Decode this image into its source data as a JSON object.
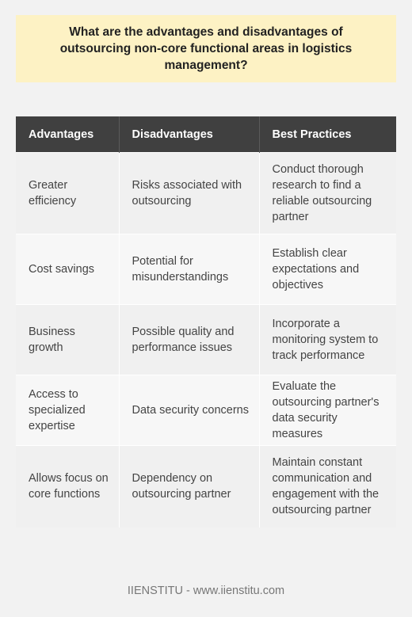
{
  "title": "What are the advantages and disadvantages of outsourcing non-core functional areas in logistics management?",
  "table": {
    "headers": [
      "Advantages",
      "Disadvantages",
      "Best Practices"
    ],
    "rows": [
      [
        "Greater efficiency",
        "Risks associated with outsourcing",
        "Conduct thorough research to find a reliable outsourcing partner"
      ],
      [
        "Cost savings",
        "Potential for misunderstandings",
        "Establish clear expectations and objectives"
      ],
      [
        "Business growth",
        "Possible quality and performance issues",
        "Incorporate a monitoring system to track performance"
      ],
      [
        "Access to specialized expertise",
        "Data security concerns",
        "Evaluate the outsourcing partner's data security measures"
      ],
      [
        "Allows focus on core functions",
        "Dependency on outsourcing partner",
        "Maintain constant communication and engagement with the outsourcing partner"
      ]
    ]
  },
  "footer": "IIENSTITU - www.iienstitu.com"
}
